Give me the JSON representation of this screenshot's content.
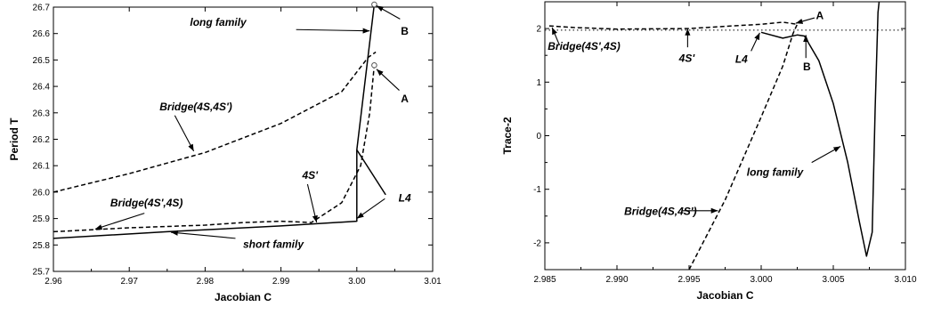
{
  "chart_data": [
    {
      "type": "line",
      "xlabel": "Jacobian  C",
      "ylabel": "Period  T",
      "xlim": [
        2.96,
        3.01
      ],
      "ylim": [
        25.7,
        26.7
      ],
      "xticks": [
        "2.96",
        "2.97",
        "2.98",
        "2.99",
        "3.00",
        "3.01"
      ],
      "yticks": [
        "25.7",
        "25.8",
        "25.9",
        "26.0",
        "26.1",
        "26.2",
        "26.3",
        "26.4",
        "26.5",
        "26.6",
        "26.7"
      ],
      "grid": false,
      "series": [
        {
          "style": "solid",
          "points": [
            [
              2.96,
              25.825
            ],
            [
              2.975,
              25.85
            ],
            [
              2.99,
              25.872
            ],
            [
              3.0,
              25.89
            ],
            [
              3.0,
              26.16
            ],
            [
              3.0023,
              26.71
            ],
            [
              3.0026,
              26.75
            ]
          ]
        },
        {
          "style": "solid",
          "points": [
            [
              3.0,
              26.16
            ],
            [
              3.0038,
              25.99
            ]
          ]
        },
        {
          "style": "dashed",
          "points": [
            [
              2.96,
              26.0
            ],
            [
              2.97,
              26.07
            ],
            [
              2.98,
              26.15
            ],
            [
              2.99,
              26.26
            ],
            [
              2.998,
              26.38
            ],
            [
              3.0015,
              26.51
            ],
            [
              3.0025,
              26.53
            ]
          ]
        },
        {
          "style": "dashed",
          "points": [
            [
              2.96,
              25.85
            ],
            [
              2.97,
              25.865
            ],
            [
              2.98,
              25.875
            ],
            [
              2.985,
              25.885
            ],
            [
              2.99,
              25.89
            ],
            [
              2.994,
              25.885
            ],
            [
              2.998,
              25.96
            ],
            [
              3.0005,
              26.1
            ],
            [
              3.0017,
              26.3
            ],
            [
              3.0023,
              26.48
            ]
          ]
        }
      ],
      "markers": [
        [
          3.0023,
          26.71
        ],
        [
          3.0023,
          26.48
        ]
      ],
      "annotations": [
        {
          "text": "long family",
          "style": "italic",
          "tx": 2.978,
          "ty": 26.63,
          "from": [
            2.992,
            26.615
          ],
          "to": [
            3.0017,
            26.61
          ]
        },
        {
          "text": "B",
          "style": "plain",
          "tx": 3.0058,
          "ty": 26.595,
          "from": [
            3.0057,
            26.655
          ],
          "to": [
            3.0026,
            26.705
          ]
        },
        {
          "text": "A",
          "style": "plain",
          "tx": 3.0058,
          "ty": 26.34,
          "from": [
            3.0056,
            26.385
          ],
          "to": [
            3.0026,
            26.465
          ]
        },
        {
          "text": "Bridge(4S,4S')",
          "style": "italic",
          "tx": 2.974,
          "ty": 26.31,
          "from": [
            2.976,
            26.29
          ],
          "to": [
            2.9785,
            26.155
          ]
        },
        {
          "text": "4S'",
          "style": "italic",
          "tx": 2.9928,
          "ty": 26.05,
          "from": [
            2.9935,
            26.03
          ],
          "to": [
            2.9947,
            25.885
          ]
        },
        {
          "text": "L4",
          "style": "italic",
          "tx": 3.0055,
          "ty": 25.965,
          "from": [
            3.0037,
            25.975
          ],
          "to": [
            3.0,
            25.9
          ]
        },
        {
          "text": "Bridge(4S',4S)",
          "style": "italic",
          "tx": 2.9675,
          "ty": 25.945,
          "from": [
            2.972,
            25.92
          ],
          "to": [
            2.9655,
            25.86
          ]
        },
        {
          "text": "short family",
          "style": "italic",
          "tx": 2.985,
          "ty": 25.79,
          "from": [
            2.984,
            25.825
          ],
          "to": [
            2.9755,
            25.848
          ]
        }
      ]
    },
    {
      "type": "line",
      "xlabel": "Jacobian  C",
      "ylabel": "Trace-2",
      "xlim": [
        2.985,
        3.01
      ],
      "ylim": [
        -2.5,
        2.5
      ],
      "xticks": [
        "2.985",
        "2.990",
        "2.995",
        "3.000",
        "3.005",
        "3.010"
      ],
      "yticks": [
        "-2",
        "-1",
        "0",
        "1",
        "2"
      ],
      "grid": false,
      "reference_line": {
        "y": 1.97,
        "style": "dotted"
      },
      "series": [
        {
          "style": "dashed",
          "points": [
            [
              2.9853,
              2.05
            ],
            [
              2.987,
              2.02
            ],
            [
              2.99,
              1.99
            ],
            [
              2.995,
              2.0
            ],
            [
              2.998,
              2.05
            ],
            [
              3.0,
              2.08
            ],
            [
              3.0015,
              2.12
            ],
            [
              3.0025,
              2.08
            ]
          ]
        },
        {
          "style": "dashed",
          "points": [
            [
              2.995,
              -2.5
            ],
            [
              2.9975,
              -1.2
            ],
            [
              3.0,
              0.35
            ],
            [
              3.0015,
              1.3
            ],
            [
              3.0022,
              1.9
            ],
            [
              3.0025,
              2.08
            ]
          ]
        },
        {
          "style": "solid",
          "points": [
            [
              3.0,
              1.93
            ],
            [
              3.0015,
              1.82
            ],
            [
              3.0025,
              1.88
            ],
            [
              3.003,
              1.86
            ],
            [
              3.004,
              1.4
            ],
            [
              3.005,
              0.6
            ],
            [
              3.006,
              -0.5
            ],
            [
              3.0068,
              -1.6
            ],
            [
              3.0073,
              -2.25
            ],
            [
              3.0077,
              -1.8
            ],
            [
              3.0079,
              0.5
            ],
            [
              3.0081,
              2.3
            ],
            [
              3.0082,
              2.55
            ]
          ]
        }
      ],
      "annotations": [
        {
          "text": "A",
          "style": "plain",
          "tx": 3.0038,
          "ty": 2.18,
          "from": [
            3.0037,
            2.2
          ],
          "to": [
            3.0024,
            2.1
          ]
        },
        {
          "text": "B",
          "style": "plain",
          "tx": 3.0029,
          "ty": 1.22,
          "from": [
            3.0031,
            1.45
          ],
          "to": [
            3.0031,
            1.88
          ]
        },
        {
          "text": "4S'",
          "style": "italic",
          "tx": 2.9943,
          "ty": 1.38,
          "from": [
            2.9949,
            1.65
          ],
          "to": [
            2.9949,
            2.0
          ]
        },
        {
          "text": "L4",
          "style": "italic",
          "tx": 2.9982,
          "ty": 1.36,
          "from": [
            2.9993,
            1.58
          ],
          "to": [
            2.9999,
            1.92
          ]
        },
        {
          "text": "Bridge(4S',4S)",
          "style": "italic",
          "tx": 2.9852,
          "ty": 1.6,
          "from": [
            2.986,
            1.7
          ],
          "to": [
            2.9855,
            2.02
          ]
        },
        {
          "text": "Bridge(4S,4S')",
          "style": "italic",
          "tx": 2.9905,
          "ty": -1.48,
          "from": [
            2.9945,
            -1.4
          ],
          "to": [
            2.997,
            -1.4
          ]
        },
        {
          "text": "long family",
          "style": "italic",
          "tx": 2.999,
          "ty": -0.75,
          "from": [
            3.0035,
            -0.5
          ],
          "to": [
            3.0055,
            -0.2
          ]
        }
      ]
    }
  ]
}
